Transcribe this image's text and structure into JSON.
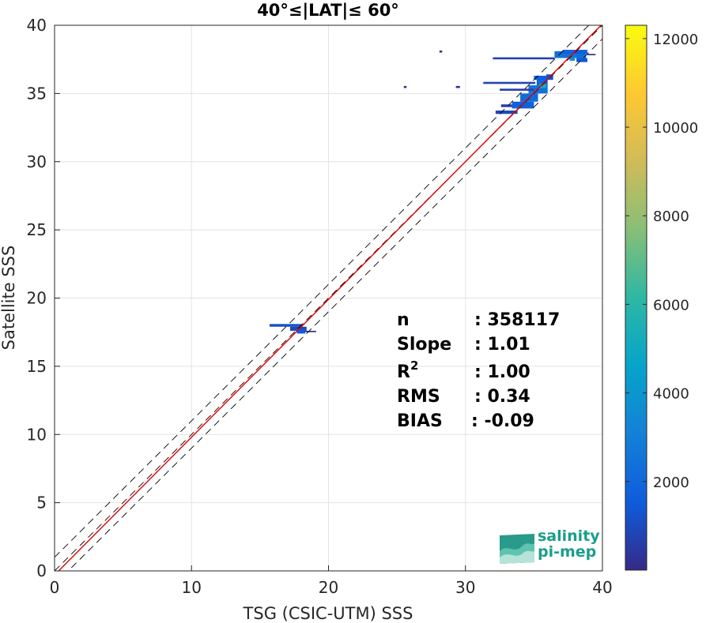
{
  "chart_data": {
    "type": "heatmap",
    "title": "40°≤|LAT|≤ 60°",
    "xlabel": "TSG (CSIC-UTM) SSS",
    "ylabel": "Satellite SSS",
    "xlim": [
      0,
      40
    ],
    "ylim": [
      0,
      40
    ],
    "xticks": [
      "0",
      "10",
      "20",
      "30",
      "40"
    ],
    "yticks": [
      "0",
      "5",
      "10",
      "15",
      "20",
      "25",
      "30",
      "35",
      "40"
    ],
    "grid": true,
    "colorbar": {
      "range": [
        0,
        12300
      ],
      "ticks": [
        "2000",
        "4000",
        "6000",
        "8000",
        "10000",
        "12000"
      ],
      "colormap": "parula"
    },
    "reference_lines": [
      {
        "name": "identity",
        "style": "dashed",
        "color": "#000000",
        "slope": 1,
        "intercept": 0
      },
      {
        "name": "upper bound",
        "style": "dashed",
        "color": "#000000",
        "slope": 1,
        "intercept": 1
      },
      {
        "name": "lower bound",
        "style": "dashed",
        "color": "#000000",
        "slope": 1,
        "intercept": -1
      },
      {
        "name": "fit",
        "style": "solid",
        "color": "#e00000",
        "slope": 1.01,
        "intercept": -0.3
      }
    ],
    "density_cells": [
      {
        "x": 15.7,
        "y": 17.9,
        "w": 2.4,
        "h": 0.2,
        "count": 1200
      },
      {
        "x": 17.2,
        "y": 17.6,
        "w": 1.2,
        "h": 0.3,
        "count": 900
      },
      {
        "x": 17.7,
        "y": 17.4,
        "w": 0.6,
        "h": 0.3,
        "count": 1500
      },
      {
        "x": 18.3,
        "y": 17.5,
        "w": 0.8,
        "h": 0.1,
        "count": 300
      },
      {
        "x": 32.2,
        "y": 33.5,
        "w": 1.6,
        "h": 0.25,
        "count": 900
      },
      {
        "x": 32.6,
        "y": 34.0,
        "w": 1.5,
        "h": 0.2,
        "count": 700
      },
      {
        "x": 33.4,
        "y": 33.9,
        "w": 1.6,
        "h": 0.5,
        "count": 1800
      },
      {
        "x": 34.0,
        "y": 34.4,
        "w": 1.3,
        "h": 0.6,
        "count": 2200
      },
      {
        "x": 34.6,
        "y": 35.0,
        "w": 1.4,
        "h": 0.6,
        "count": 2500
      },
      {
        "x": 35.2,
        "y": 35.6,
        "w": 0.8,
        "h": 0.5,
        "count": 2000
      },
      {
        "x": 35.4,
        "y": 35.4,
        "w": 0.5,
        "h": 0.3,
        "count": 5200
      },
      {
        "x": 35.0,
        "y": 36.0,
        "w": 1.4,
        "h": 0.3,
        "count": 1600
      },
      {
        "x": 31.3,
        "y": 35.7,
        "w": 3.8,
        "h": 0.15,
        "count": 800
      },
      {
        "x": 32.5,
        "y": 35.2,
        "w": 2.5,
        "h": 0.15,
        "count": 600
      },
      {
        "x": 35.9,
        "y": 36.0,
        "w": 0.5,
        "h": 0.4,
        "count": 1200
      },
      {
        "x": 32.0,
        "y": 37.5,
        "w": 4.5,
        "h": 0.15,
        "count": 700
      },
      {
        "x": 36.5,
        "y": 37.6,
        "w": 2.3,
        "h": 0.5,
        "count": 2400
      },
      {
        "x": 37.1,
        "y": 37.9,
        "w": 1.8,
        "h": 0.3,
        "count": 1700
      },
      {
        "x": 38.1,
        "y": 37.3,
        "w": 0.8,
        "h": 0.3,
        "count": 1400
      },
      {
        "x": 37.6,
        "y": 37.4,
        "w": 0.4,
        "h": 0.3,
        "count": 3600
      },
      {
        "x": 38.9,
        "y": 37.8,
        "w": 0.6,
        "h": 0.1,
        "count": 400
      },
      {
        "x": 28.1,
        "y": 38.0,
        "w": 0.2,
        "h": 0.15,
        "count": 300
      },
      {
        "x": 25.5,
        "y": 35.4,
        "w": 0.2,
        "h": 0.15,
        "count": 300
      },
      {
        "x": 29.3,
        "y": 35.4,
        "w": 0.3,
        "h": 0.15,
        "count": 300
      }
    ],
    "stats": [
      {
        "label": "n",
        "value": ": 358117"
      },
      {
        "label": "Slope",
        "value": ": 1.01"
      },
      {
        "label": "R",
        "sup": "2",
        "value": ": 1.00"
      },
      {
        "label": "RMS",
        "value": ": 0.34"
      },
      {
        "label": "BIAS",
        "value": ": -0.09"
      }
    ]
  },
  "logo": {
    "line1": "salinity",
    "line2": "pi-mep"
  }
}
